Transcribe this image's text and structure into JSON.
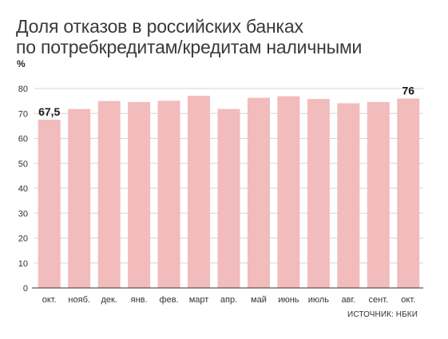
{
  "title_line1": "Доля отказов в российских банках",
  "title_line2": "по потребкредитам/кредитам наличными",
  "unit": "%",
  "source": "ИСТОЧНИК: НБКИ",
  "colors": {
    "bar": "#f2bcbc",
    "grid": "#d6d6d6",
    "axis": "#333333",
    "text": "#333333"
  },
  "chart_data": {
    "type": "bar",
    "categories": [
      "окт.",
      "нояб.",
      "дек.",
      "янв.",
      "фев.",
      "март",
      "апр.",
      "май",
      "июнь",
      "июль",
      "авг.",
      "сент.",
      "окт."
    ],
    "values": [
      67.5,
      71.8,
      75.0,
      74.6,
      75.1,
      77.1,
      71.8,
      76.3,
      76.9,
      75.8,
      74.1,
      74.6,
      76.0
    ],
    "ylim": [
      0,
      80
    ],
    "yticks": [
      0,
      10,
      20,
      30,
      40,
      50,
      60,
      70,
      80
    ],
    "grid": true,
    "data_labels": [
      {
        "index": 0,
        "text": "67,5"
      },
      {
        "index": 12,
        "text": "76"
      }
    ]
  }
}
